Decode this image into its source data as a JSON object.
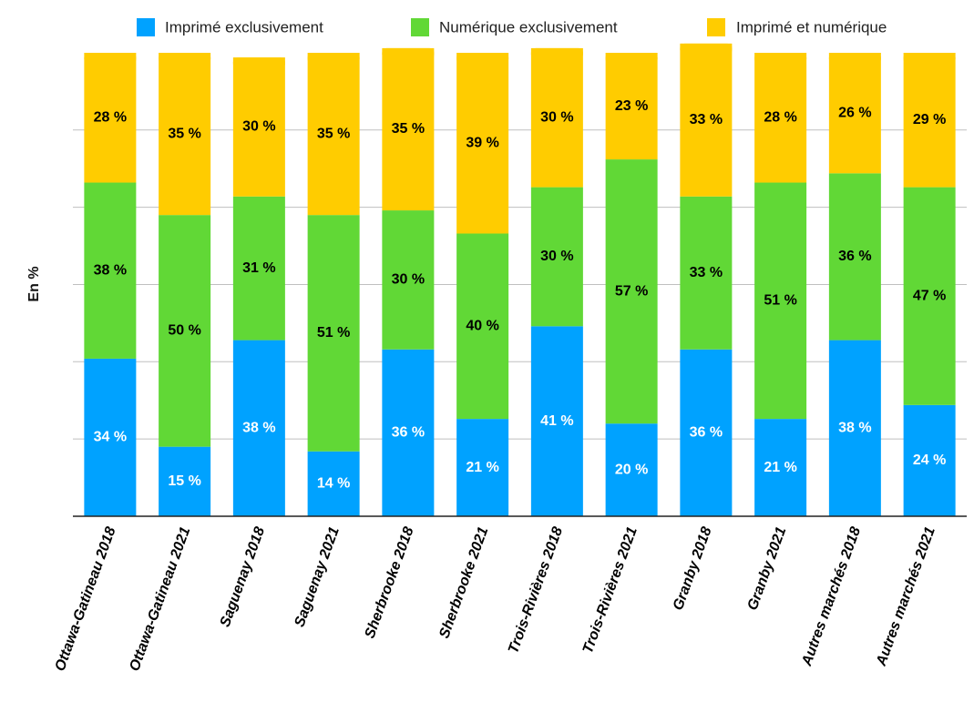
{
  "chart_data": {
    "type": "bar",
    "stacked": true,
    "title": "",
    "xlabel": "",
    "ylabel": "En %",
    "ylim": [
      0,
      100
    ],
    "grid": true,
    "legend_position": "top",
    "categories": [
      "Ottawa-Gatineau 2018",
      "Ottawa-Gatineau 2021",
      "Saguenay 2018",
      "Saguenay 2021",
      "Sherbrooke 2018",
      "Sherbrooke 2021",
      "Trois-Rivières 2018",
      "Trois-Rivières 2021",
      "Granby 2018",
      "Granby 2021",
      "Autres marchés 2018",
      "Autres marchés 2021"
    ],
    "series": [
      {
        "name": "Imprimé exclusivement",
        "color": "#00A2FF",
        "label_color": "#FFFFFF",
        "values": [
          34,
          15,
          38,
          14,
          36,
          21,
          41,
          20,
          36,
          21,
          38,
          24
        ],
        "labels": [
          "34 %",
          "15 %",
          "38 %",
          "14 %",
          "36 %",
          "21 %",
          "41 %",
          "20 %",
          "36 %",
          "21 %",
          "38 %",
          "24 %"
        ]
      },
      {
        "name": "Numérique exclusivement",
        "color": "#61D836",
        "label_color": "#000000",
        "values": [
          38,
          50,
          31,
          51,
          30,
          40,
          30,
          57,
          33,
          51,
          36,
          47
        ],
        "labels": [
          "38 %",
          "50 %",
          "31 %",
          "51 %",
          "30 %",
          "40 %",
          "30 %",
          "57 %",
          "33 %",
          "51 %",
          "36 %",
          "47 %"
        ]
      },
      {
        "name": "Imprimé et numérique",
        "color": "#FFCC00",
        "label_color": "#000000",
        "values": [
          28,
          35,
          30,
          35,
          35,
          39,
          30,
          23,
          33,
          28,
          26,
          29
        ],
        "labels": [
          "28 %",
          "35 %",
          "30 %",
          "35 %",
          "35 %",
          "39 %",
          "30 %",
          "23 %",
          "33 %",
          "28 %",
          "26 %",
          "29 %"
        ]
      }
    ]
  }
}
